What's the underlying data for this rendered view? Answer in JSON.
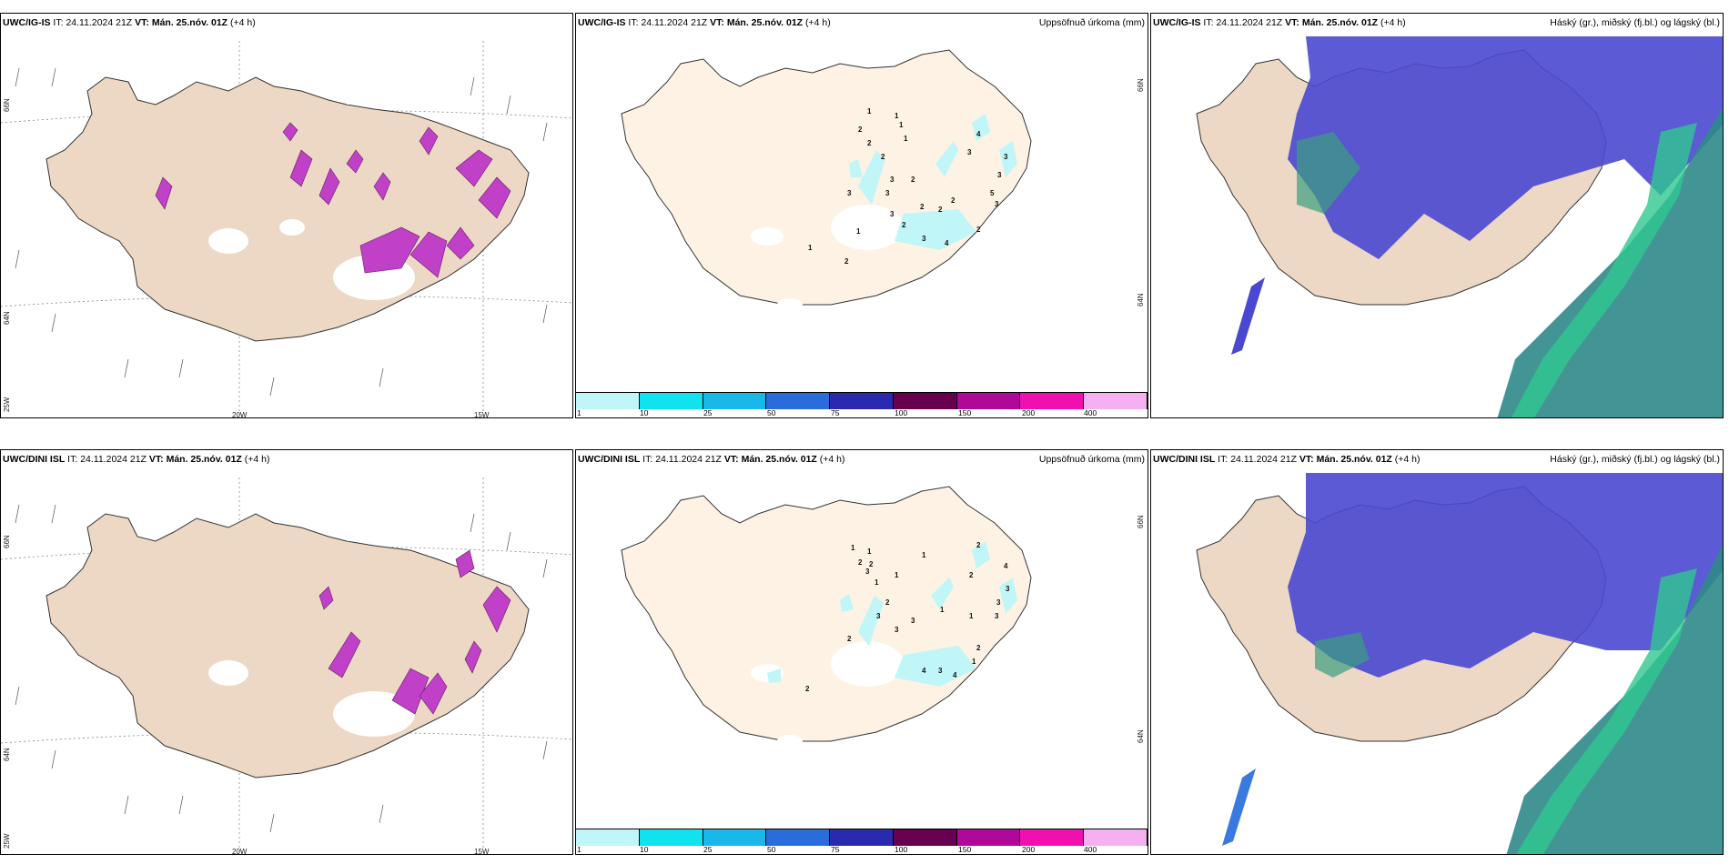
{
  "rows": [
    {
      "model": "UWC/IG-IS",
      "it_label": "IT:",
      "it_value": "24.11.2024 21Z",
      "vt_label": "VT:",
      "vt_value": "Mán. 25.nóv. 01Z",
      "lead": "(+4 h)",
      "lat_labels": [
        "66N",
        "64N"
      ],
      "lon_labels": [
        "25W",
        "20W",
        "15W"
      ],
      "precip_numbers": [
        "1",
        "2",
        "2",
        "2",
        "1",
        "1",
        "1",
        "3",
        "3",
        "2",
        "2",
        "2",
        "4",
        "3",
        "3",
        "3",
        "5",
        "3",
        "2",
        "2",
        "3",
        "4",
        "1",
        "2",
        "1",
        "3",
        "3",
        "2"
      ]
    },
    {
      "model": "UWC/DINI ISL",
      "it_label": "IT:",
      "it_value": "24.11.2024 21Z",
      "vt_label": "VT:",
      "vt_value": "Mán. 25.nóv. 01Z",
      "lead": "(+4 h)",
      "lat_labels": [
        "66N",
        "64N"
      ],
      "lon_labels": [
        "25W",
        "20W",
        "15W"
      ],
      "precip_numbers": [
        "1",
        "1",
        "2",
        "2",
        "3",
        "1",
        "1",
        "2",
        "3",
        "3",
        "1",
        "1",
        "1",
        "2",
        "4",
        "3",
        "3",
        "3",
        "2",
        "2",
        "4",
        "3",
        "4",
        "1",
        "2",
        "2",
        "3"
      ]
    }
  ],
  "fields": {
    "precip_title": "Uppsöfnuð úrkoma (mm)",
    "cloud_title": "Háský (gr.), miðský (fj.bl.) og lágský (bl.)"
  },
  "colorbar": {
    "labels": [
      "1",
      "10",
      "25",
      "50",
      "75",
      "100",
      "150",
      "200",
      "400"
    ],
    "colors": [
      "#c0f6f8",
      "#10e2ee",
      "#18b8e8",
      "#2a6cdc",
      "#2a2ab0",
      "#680050",
      "#b00898",
      "#f010b0",
      "#f4b0f0"
    ]
  }
}
